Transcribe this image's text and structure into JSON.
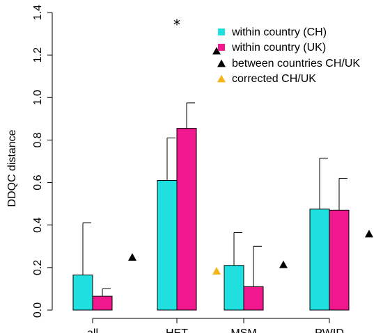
{
  "chart_data": {
    "type": "bar",
    "title": "",
    "xlabel": "",
    "ylabel": "DDQC distance",
    "ylim": [
      0.0,
      1.4
    ],
    "yticks": [
      "0.0",
      "0.2",
      "0.4",
      "0.6",
      "0.8",
      "1.0",
      "1.2",
      "1.4"
    ],
    "categories": [
      "all",
      "HET",
      "MSM",
      "PWID"
    ],
    "series": [
      {
        "name": "within country (CH)",
        "color": "#1fdfdf",
        "values": [
          0.165,
          0.61,
          0.21,
          0.475
        ],
        "error_upper": [
          0.41,
          0.81,
          0.365,
          0.715
        ]
      },
      {
        "name": "within country (UK)",
        "color": "#f0188c",
        "values": [
          0.065,
          0.855,
          0.11,
          0.47
        ],
        "error_upper": [
          0.1,
          0.975,
          0.3,
          0.62
        ]
      }
    ],
    "markers": [
      {
        "name": "between countries CH/UK",
        "color": "#000000",
        "shape": "triangle",
        "values": [
          0.25,
          1.22,
          0.215,
          0.36
        ]
      },
      {
        "name": "corrected CH/UK",
        "color": "#f5b41a",
        "shape": "triangle",
        "values": [
          null,
          0.185,
          null,
          null
        ]
      }
    ],
    "annotations": [
      {
        "text": "*",
        "category": "HET",
        "y": 1.35
      }
    ],
    "legend_position": "top-right",
    "grid": false
  }
}
